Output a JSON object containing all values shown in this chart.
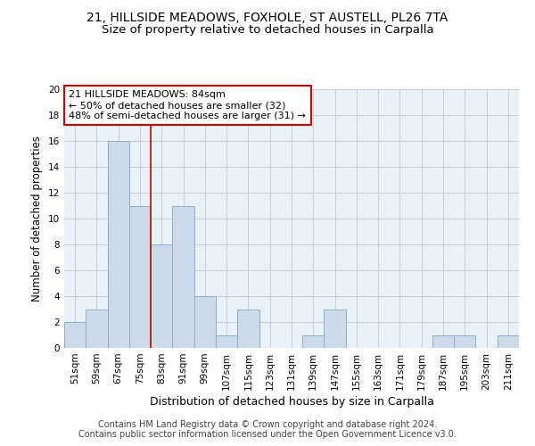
{
  "title1": "21, HILLSIDE MEADOWS, FOXHOLE, ST AUSTELL, PL26 7TA",
  "title2": "Size of property relative to detached houses in Carpalla",
  "xlabel": "Distribution of detached houses by size in Carpalla",
  "ylabel": "Number of detached properties",
  "footnote1": "Contains HM Land Registry data © Crown copyright and database right 2024.",
  "footnote2": "Contains public sector information licensed under the Open Government Licence v3.0.",
  "bin_labels": [
    "51sqm",
    "59sqm",
    "67sqm",
    "75sqm",
    "83sqm",
    "91sqm",
    "99sqm",
    "107sqm",
    "115sqm",
    "123sqm",
    "131sqm",
    "139sqm",
    "147sqm",
    "155sqm",
    "163sqm",
    "171sqm",
    "179sqm",
    "187sqm",
    "195sqm",
    "203sqm",
    "211sqm"
  ],
  "bin_counts": [
    2,
    3,
    16,
    11,
    8,
    11,
    4,
    1,
    3,
    0,
    0,
    1,
    3,
    0,
    0,
    0,
    0,
    1,
    1,
    0,
    1
  ],
  "bar_color": "#cddaea",
  "bar_edge_color": "#8aafc8",
  "red_line_bin_index": 4,
  "annotation_text": "21 HILLSIDE MEADOWS: 84sqm\n← 50% of detached houses are smaller (32)\n48% of semi-detached houses are larger (31) →",
  "annotation_box_color": "#ffffff",
  "annotation_box_edge": "#cc0000",
  "ylim": [
    0,
    20
  ],
  "yticks": [
    0,
    2,
    4,
    6,
    8,
    10,
    12,
    14,
    16,
    18,
    20
  ],
  "grid_color": "#cccccc",
  "bg_color": "#e8f0f8",
  "title1_fontsize": 10,
  "title2_fontsize": 9.5,
  "xlabel_fontsize": 9,
  "ylabel_fontsize": 8.5,
  "tick_fontsize": 7.5,
  "annotation_fontsize": 8,
  "footnote_fontsize": 7
}
